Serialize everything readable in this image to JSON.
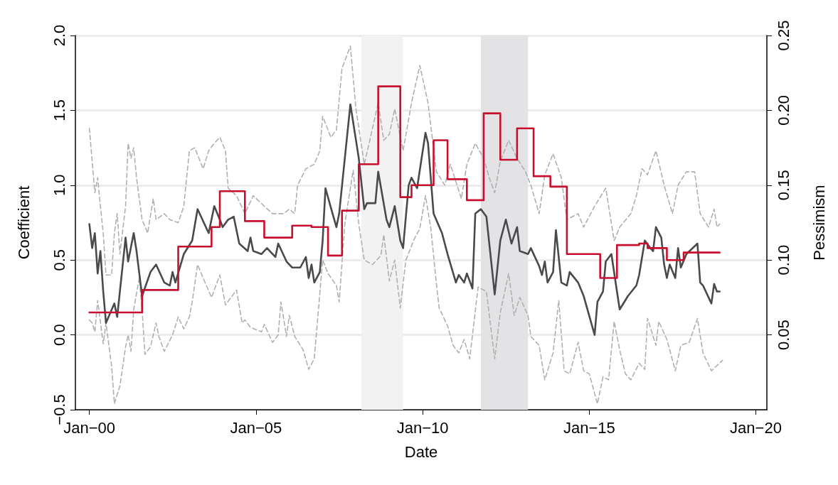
{
  "chart_data": {
    "type": "line",
    "xlabel": "Date",
    "ylabel": "Coefficient",
    "y2label": "Pessimism",
    "grid": "y",
    "xlim": [
      "1999-08",
      "2020-05"
    ],
    "xticks": [
      {
        "value": "2000-01",
        "label": "Jan−00"
      },
      {
        "value": "2005-01",
        "label": "Jan−05"
      },
      {
        "value": "2010-01",
        "label": "Jan−10"
      },
      {
        "value": "2015-01",
        "label": "Jan−15"
      },
      {
        "value": "2020-01",
        "label": "Jan−20"
      }
    ],
    "ylim": [
      -0.5,
      2.0
    ],
    "yticks": [
      {
        "value": -0.5,
        "label": "−0.5"
      },
      {
        "value": 0,
        "label": "0.0"
      },
      {
        "value": 0.5,
        "label": "0.5"
      },
      {
        "value": 1,
        "label": "1.0"
      },
      {
        "value": 1.5,
        "label": "1.5"
      },
      {
        "value": 2,
        "label": "2.0"
      }
    ],
    "y2lim": [
      0,
      0.25
    ],
    "y2ticks": [
      0.05,
      {
        "value": 0.1,
        "label": "0.10"
      },
      0.15,
      {
        "value": 0.2,
        "label": "0.20"
      },
      0.25
    ],
    "bands": [
      {
        "axis": "x",
        "from": "2008-03",
        "to": "2009-06",
        "color": "#f2f2f3"
      },
      {
        "axis": "x",
        "from": "2011-10",
        "to": "2013-03",
        "color": "#e3e3e6"
      }
    ],
    "series": [
      {
        "color": "#b0b0b0",
        "line_style": "dashed",
        "x": [
          "2000-01",
          "2000-03",
          "2000-04",
          "2000-05",
          "2000-06",
          "2000-07",
          "2000-09",
          "2000-10",
          "2000-11",
          "2000-12",
          "2001-02",
          "2001-03",
          "2001-04",
          "2001-05",
          "2001-06",
          "2001-08",
          "2001-10",
          "2001-12",
          "2002-01",
          "2002-04",
          "2002-06",
          "2002-09",
          "2002-11",
          "2003-01",
          "2003-03",
          "2003-06",
          "2003-08",
          "2003-10",
          "2003-12",
          "2004-02",
          "2004-03",
          "2004-06",
          "2004-09",
          "2004-12",
          "2005-04",
          "2005-07",
          "2005-11",
          "2006-01",
          "2006-03",
          "2006-04",
          "2006-07",
          "2006-10",
          "2006-12",
          "2007-01",
          "2007-04",
          "2007-06",
          "2007-08",
          "2007-11",
          "2008-01",
          "2008-04",
          "2008-06",
          "2008-09",
          "2008-11",
          "2009-01",
          "2009-03",
          "2009-06",
          "2009-09",
          "2009-12",
          "2010-03",
          "2010-06",
          "2010-09",
          "2010-11",
          "2011-03",
          "2011-05",
          "2011-08",
          "2011-11",
          "2012-01",
          "2012-03",
          "2012-05",
          "2012-08",
          "2012-11",
          "2013-02",
          "2013-04",
          "2013-07",
          "2013-09",
          "2013-12",
          "2014-03",
          "2014-05",
          "2014-09",
          "2014-11",
          "2015-03",
          "2015-07",
          "2015-10",
          "2015-12",
          "2016-04",
          "2016-06",
          "2016-08",
          "2016-10",
          "2017-01",
          "2017-04",
          "2017-07",
          "2017-09",
          "2017-12",
          "2018-03",
          "2018-05",
          "2018-08",
          "2018-10",
          "2018-11",
          "2018-12"
        ],
        "values": [
          1.38,
          0.95,
          1.05,
          0.86,
          0.68,
          0.4,
          0.4,
          0.68,
          0.81,
          0.54,
          0.86,
          1.28,
          1.18,
          1.25,
          1.05,
          0.77,
          0.68,
          0.91,
          0.77,
          0.81,
          0.77,
          0.75,
          0.86,
          1.23,
          1.25,
          1.11,
          1.23,
          1.28,
          1.32,
          1.23,
          0.98,
          0.93,
          0.81,
          0.93,
          0.86,
          0.81,
          0.81,
          0.84,
          0.81,
          1.0,
          1.11,
          1.14,
          1.23,
          1.46,
          1.32,
          1.37,
          1.78,
          1.93,
          1.51,
          1.14,
          1.3,
          1.55,
          1.3,
          1.34,
          1.51,
          1.23,
          1.55,
          1.8,
          1.55,
          1.09,
          1.0,
          1.14,
          0.91,
          1.14,
          1.28,
          1.18,
          1.05,
          0.95,
          1.16,
          1.3,
          1.18,
          1.09,
          1.0,
          0.81,
          1.07,
          1.21,
          1.05,
          0.77,
          0.81,
          0.72,
          0.86,
          0.98,
          0.63,
          0.72,
          0.81,
          0.93,
          1.11,
          1.07,
          1.23,
          1.0,
          0.81,
          1.0,
          1.09,
          1.09,
          0.81,
          0.72,
          0.84,
          0.72,
          0.74
        ]
      },
      {
        "color": "#b0b0b0",
        "line_style": "dashed",
        "x": [
          "2000-01",
          "2000-02",
          "2000-03",
          "2000-04",
          "2000-06",
          "2000-07",
          "2000-09",
          "2000-10",
          "2000-12",
          "2001-02",
          "2001-03",
          "2001-04",
          "2001-05",
          "2001-07",
          "2001-08",
          "2001-09",
          "2001-11",
          "2002-01",
          "2002-02",
          "2002-04",
          "2002-07",
          "2002-09",
          "2002-11",
          "2003-01",
          "2003-02",
          "2003-04",
          "2003-06",
          "2003-09",
          "2003-10",
          "2003-12",
          "2004-02",
          "2004-06",
          "2004-08",
          "2004-09",
          "2004-11",
          "2005-03",
          "2005-04",
          "2005-07",
          "2005-09",
          "2005-10",
          "2005-12",
          "2006-01",
          "2006-03",
          "2006-06",
          "2006-08",
          "2006-10",
          "2007-01",
          "2007-03",
          "2007-06",
          "2007-07",
          "2007-09",
          "2007-12",
          "2008-02",
          "2008-04",
          "2008-07",
          "2008-10",
          "2008-11",
          "2009-01",
          "2009-03",
          "2009-05",
          "2009-07",
          "2009-10",
          "2009-12",
          "2010-02",
          "2010-04",
          "2010-06",
          "2010-07",
          "2010-10",
          "2010-12",
          "2011-02",
          "2011-04",
          "2011-06",
          "2011-09",
          "2011-12",
          "2012-03",
          "2012-05",
          "2012-08",
          "2012-10",
          "2012-12",
          "2013-03",
          "2013-04",
          "2013-07",
          "2013-09",
          "2013-12",
          "2014-02",
          "2014-04",
          "2014-06",
          "2014-09",
          "2014-11",
          "2015-01",
          "2015-04",
          "2015-06",
          "2015-08",
          "2015-10",
          "2015-12",
          "2016-02",
          "2016-04",
          "2016-07",
          "2016-09",
          "2016-10",
          "2017-01",
          "2017-02",
          "2017-05",
          "2017-08",
          "2017-10",
          "2018-01",
          "2018-04",
          "2018-06",
          "2018-09",
          "2019-01"
        ],
        "values": [
          0.1,
          0.08,
          0.02,
          0.23,
          -0.06,
          0.08,
          -0.21,
          -0.46,
          -0.34,
          -0.08,
          0.0,
          -0.11,
          0.17,
          0.38,
          0.17,
          -0.13,
          -0.08,
          0.08,
          -0.01,
          -0.11,
          0.0,
          0.12,
          0.04,
          0.12,
          0.22,
          0.47,
          0.38,
          0.25,
          0.3,
          0.4,
          0.2,
          0.3,
          0.08,
          0.1,
          0.05,
          0.02,
          0.07,
          -0.05,
          0.0,
          0.22,
          -0.01,
          0.13,
          -0.01,
          -0.1,
          -0.23,
          -0.16,
          0.5,
          0.41,
          0.33,
          0.22,
          0.74,
          1.1,
          0.74,
          0.5,
          0.47,
          0.53,
          0.67,
          0.36,
          0.5,
          0.18,
          0.5,
          0.64,
          0.71,
          0.93,
          0.71,
          0.34,
          0.18,
          0.06,
          -0.07,
          -0.12,
          -0.03,
          -0.16,
          0.32,
          0.29,
          -0.16,
          0.15,
          0.41,
          0.13,
          0.25,
          0.13,
          -0.01,
          -0.07,
          -0.3,
          -0.12,
          0.23,
          -0.24,
          -0.26,
          -0.05,
          -0.24,
          -0.26,
          -0.46,
          -0.28,
          -0.3,
          0.09,
          -0.1,
          -0.26,
          -0.3,
          -0.19,
          -0.23,
          0.11,
          -0.07,
          0.09,
          -0.03,
          -0.24,
          -0.07,
          -0.05,
          0.11,
          -0.12,
          -0.24,
          -0.17
        ]
      },
      {
        "color": "#4a4a4c",
        "line_style": "solid",
        "x": [
          "2000-01",
          "2000-02",
          "2000-03",
          "2000-04",
          "2000-05",
          "2000-06",
          "2000-07",
          "2000-10",
          "2000-11",
          "2001-02",
          "2001-03",
          "2001-05",
          "2001-06",
          "2001-08",
          "2001-11",
          "2002-01",
          "2002-04",
          "2002-06",
          "2002-07",
          "2002-08",
          "2002-11",
          "2003-02",
          "2003-04",
          "2003-07",
          "2003-08",
          "2003-10",
          "2003-12",
          "2004-01",
          "2004-03",
          "2004-05",
          "2004-07",
          "2004-10",
          "2004-11",
          "2004-12",
          "2005-03",
          "2005-05",
          "2005-08",
          "2005-09",
          "2005-12",
          "2006-02",
          "2006-05",
          "2006-07",
          "2006-08",
          "2006-09",
          "2006-10",
          "2006-12",
          "2007-01",
          "2007-02",
          "2007-04",
          "2007-06",
          "2007-07",
          "2007-09",
          "2007-11",
          "2008-02",
          "2008-04",
          "2008-05",
          "2008-08",
          "2008-09",
          "2008-12",
          "2009-01",
          "2009-03",
          "2009-05",
          "2009-06",
          "2009-07",
          "2009-08",
          "2009-09",
          "2009-11",
          "2010-02",
          "2010-03",
          "2010-05",
          "2010-08",
          "2010-10",
          "2011-01",
          "2011-02",
          "2011-04",
          "2011-05",
          "2011-07",
          "2011-08",
          "2011-10",
          "2011-12",
          "2012-03",
          "2012-05",
          "2012-07",
          "2012-09",
          "2012-11",
          "2012-12",
          "2013-03",
          "2013-04",
          "2013-07",
          "2013-08",
          "2013-09",
          "2013-10",
          "2013-12",
          "2014-01",
          "2014-03",
          "2014-05",
          "2014-06",
          "2014-09",
          "2014-11",
          "2015-02",
          "2015-03",
          "2015-04",
          "2015-06",
          "2015-07",
          "2015-09",
          "2015-11",
          "2015-12",
          "2016-03",
          "2016-06",
          "2016-07",
          "2016-09",
          "2016-11",
          "2016-12",
          "2017-01",
          "2017-03",
          "2017-04",
          "2017-05",
          "2017-06",
          "2017-08",
          "2017-09",
          "2017-10",
          "2017-12",
          "2018-04",
          "2018-05",
          "2018-06",
          "2018-09",
          "2018-10",
          "2018-11",
          "2018-12"
        ],
        "values": [
          0.74,
          0.58,
          0.68,
          0.41,
          0.56,
          0.29,
          0.08,
          0.21,
          0.12,
          0.65,
          0.49,
          0.68,
          0.56,
          0.26,
          0.42,
          0.47,
          0.35,
          0.33,
          0.42,
          0.35,
          0.54,
          0.63,
          0.84,
          0.72,
          0.68,
          0.86,
          0.77,
          0.72,
          0.77,
          0.79,
          0.61,
          0.56,
          0.65,
          0.56,
          0.54,
          0.58,
          0.52,
          0.61,
          0.49,
          0.45,
          0.45,
          0.52,
          0.38,
          0.47,
          0.35,
          0.42,
          0.63,
          0.98,
          0.85,
          0.72,
          0.81,
          1.18,
          1.54,
          1.18,
          0.84,
          0.88,
          0.88,
          1.09,
          0.77,
          0.72,
          0.86,
          0.63,
          0.58,
          0.79,
          1.0,
          1.05,
          0.98,
          1.35,
          1.28,
          0.81,
          0.68,
          0.54,
          0.35,
          0.4,
          0.35,
          0.41,
          0.31,
          0.81,
          0.84,
          0.79,
          0.27,
          0.63,
          0.77,
          0.61,
          0.72,
          0.56,
          0.54,
          0.58,
          0.46,
          0.4,
          0.49,
          0.35,
          0.42,
          0.7,
          0.35,
          0.33,
          0.42,
          0.35,
          0.26,
          0.06,
          0.0,
          0.22,
          0.29,
          0.49,
          0.54,
          0.29,
          0.17,
          0.26,
          0.33,
          0.4,
          0.63,
          0.58,
          0.56,
          0.72,
          0.65,
          0.47,
          0.38,
          0.47,
          0.38,
          0.58,
          0.45,
          0.54,
          0.61,
          0.35,
          0.33,
          0.21,
          0.34,
          0.29,
          0.29
        ]
      },
      {
        "type": "step",
        "axis": "y2",
        "color": "#c8102e",
        "line_style": "solid",
        "x": [
          "2000-01",
          "2001-08",
          "2002-09",
          "2003-09",
          "2003-12",
          "2004-09",
          "2005-04",
          "2006-02",
          "2006-09",
          "2007-03",
          "2007-08",
          "2008-02",
          "2008-09",
          "2009-05",
          "2009-09",
          "2010-05",
          "2010-10",
          "2011-05",
          "2011-11",
          "2012-05",
          "2012-11",
          "2013-05",
          "2013-11",
          "2014-05",
          "2015-05",
          "2015-11",
          "2016-07",
          "2016-10",
          "2017-05",
          "2017-11",
          "2018-12"
        ],
        "values": [
          0.065,
          0.08,
          0.109,
          0.122,
          0.146,
          0.126,
          0.115,
          0.123,
          0.122,
          0.103,
          0.133,
          0.164,
          0.216,
          0.142,
          0.15,
          0.18,
          0.154,
          0.14,
          0.198,
          0.167,
          0.188,
          0.156,
          0.149,
          0.104,
          0.088,
          0.11,
          0.111,
          0.108,
          0.1,
          0.105,
          0.105
        ]
      }
    ]
  }
}
